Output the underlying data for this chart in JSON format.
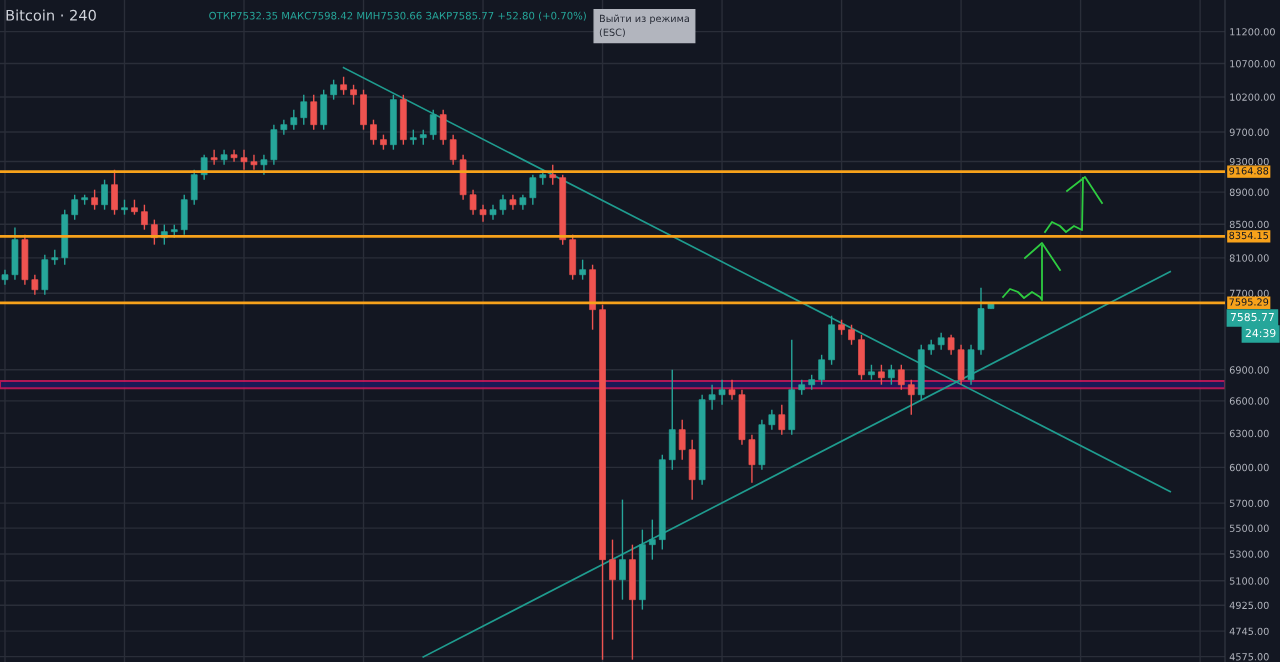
{
  "chart_data": {
    "type": "candlestick",
    "title": "Bitcoin · 240",
    "subtitle": "ОТКР7532.35 МАКС7598.42 МИН7530.66 ЗАКР7585.77 +52.80 (+0.70%)",
    "categories": [
      null,
      null,
      null,
      null,
      null,
      null,
      null,
      null,
      null,
      null,
      null,
      null,
      null,
      null,
      null,
      null,
      null,
      null,
      null,
      null,
      null,
      null,
      null,
      null,
      null,
      null,
      null,
      null,
      null,
      null,
      null,
      null,
      null,
      null,
      null,
      null,
      null,
      null,
      null,
      null,
      null,
      null,
      null,
      null,
      null,
      null,
      null,
      null,
      null,
      null,
      null,
      null,
      null,
      null,
      null,
      null,
      null,
      null,
      null,
      null,
      null,
      null,
      null,
      null,
      null,
      null,
      null,
      null,
      null,
      null,
      null,
      null,
      null,
      null,
      null,
      null,
      null,
      null,
      null,
      null,
      null,
      null,
      null,
      null,
      null,
      null,
      null,
      null,
      null,
      null,
      null,
      null,
      null,
      null,
      null,
      null,
      null,
      null,
      null,
      null,
      null,
      null,
      null,
      null,
      null,
      null,
      null,
      null,
      null,
      null,
      null,
      null,
      null,
      null,
      null,
      null,
      null,
      null,
      null,
      null,
      null,
      null,
      null
    ],
    "ohlc": [
      [
        7851,
        7964,
        7795,
        7907
      ],
      [
        7907,
        8459,
        7851,
        8314
      ],
      [
        8314,
        8374,
        7795,
        7851
      ],
      [
        7851,
        7907,
        7684,
        7739
      ],
      [
        7739,
        8137,
        7684,
        8079
      ],
      [
        8079,
        8196,
        8021,
        8102
      ],
      [
        8102,
        8679,
        8021,
        8617
      ],
      [
        8617,
        8867,
        8556,
        8804
      ],
      [
        8804,
        8867,
        8741,
        8829
      ],
      [
        8829,
        8931,
        8679,
        8741
      ],
      [
        8741,
        9060,
        8679,
        8995
      ],
      [
        8995,
        9190,
        8617,
        8679
      ],
      [
        8679,
        8804,
        8617,
        8703
      ],
      [
        8703,
        8804,
        8617,
        8654
      ],
      [
        8654,
        8741,
        8434,
        8495
      ],
      [
        8495,
        8556,
        8255,
        8338
      ],
      [
        8338,
        8495,
        8255,
        8410
      ],
      [
        8410,
        8495,
        8338,
        8434
      ],
      [
        8434,
        8867,
        8374,
        8804
      ],
      [
        8804,
        9190,
        8741,
        9125
      ],
      [
        9125,
        9390,
        9060,
        9350
      ],
      [
        9350,
        9458,
        9256,
        9323
      ],
      [
        9323,
        9458,
        9256,
        9390
      ],
      [
        9390,
        9458,
        9296,
        9350
      ],
      [
        9350,
        9458,
        9190,
        9296
      ],
      [
        9296,
        9390,
        9190,
        9256
      ],
      [
        9256,
        9390,
        9125,
        9323
      ],
      [
        9323,
        9803,
        9256,
        9733
      ],
      [
        9733,
        9873,
        9664,
        9803
      ],
      [
        9803,
        10016,
        9733,
        9902
      ],
      [
        9902,
        10232,
        9803,
        10130
      ],
      [
        10130,
        10232,
        9733,
        9803
      ],
      [
        9803,
        10306,
        9733,
        10232
      ],
      [
        10232,
        10455,
        10161,
        10380
      ],
      [
        10380,
        10500,
        10232,
        10306
      ],
      [
        10306,
        10380,
        10088,
        10232
      ],
      [
        10232,
        10306,
        9733,
        9803
      ],
      [
        9803,
        9873,
        9526,
        9595
      ],
      [
        9595,
        9664,
        9458,
        9526
      ],
      [
        9526,
        10232,
        9458,
        10161
      ],
      [
        10161,
        10232,
        9526,
        9595
      ],
      [
        9595,
        9733,
        9526,
        9622
      ],
      [
        9622,
        9733,
        9526,
        9664
      ],
      [
        9664,
        10016,
        9595,
        9945
      ],
      [
        9945,
        10016,
        9526,
        9595
      ],
      [
        9595,
        9664,
        9256,
        9323
      ],
      [
        9323,
        9390,
        8804,
        8867
      ],
      [
        8867,
        8931,
        8617,
        8679
      ],
      [
        8679,
        8741,
        8530,
        8617
      ],
      [
        8617,
        8741,
        8556,
        8679
      ],
      [
        8679,
        8867,
        8617,
        8804
      ],
      [
        8804,
        8867,
        8679,
        8741
      ],
      [
        8741,
        8867,
        8679,
        8829
      ],
      [
        8829,
        9125,
        8741,
        9086
      ],
      [
        9086,
        9190,
        8995,
        9125
      ],
      [
        9125,
        9256,
        8995,
        9086
      ],
      [
        9086,
        9125,
        8255,
        8314
      ],
      [
        8314,
        8374,
        7851,
        7907
      ],
      [
        7907,
        8079,
        7851,
        7964
      ],
      [
        7964,
        8021,
        7308,
        7521
      ],
      [
        7521,
        7575,
        4555,
        5257
      ],
      [
        5257,
        5410,
        4688,
        5108
      ],
      [
        5108,
        5729,
        4964,
        5257
      ],
      [
        5257,
        5371,
        4555,
        4964
      ],
      [
        4964,
        5488,
        4894,
        5371
      ],
      [
        5371,
        5567,
        5257,
        5410
      ],
      [
        5410,
        6110,
        5333,
        6066
      ],
      [
        6066,
        6900,
        5980,
        6333
      ],
      [
        6333,
        6424,
        6066,
        6154
      ],
      [
        6154,
        6243,
        5729,
        5895
      ],
      [
        5895,
        6658,
        5853,
        6611
      ],
      [
        6611,
        6754,
        6517,
        6658
      ],
      [
        6658,
        6803,
        6564,
        6706
      ],
      [
        6706,
        6803,
        6611,
        6658
      ],
      [
        6658,
        6706,
        6198,
        6243
      ],
      [
        6243,
        6288,
        5870,
        6023
      ],
      [
        6023,
        6424,
        5980,
        6378
      ],
      [
        6378,
        6517,
        6333,
        6470
      ],
      [
        6470,
        6564,
        6288,
        6333
      ],
      [
        6333,
        7204,
        6288,
        6706
      ],
      [
        6706,
        6803,
        6658,
        6754
      ],
      [
        6754,
        6851,
        6706,
        6803
      ],
      [
        6803,
        7050,
        6754,
        7000
      ],
      [
        7000,
        7456,
        6950,
        7360
      ],
      [
        7360,
        7413,
        7255,
        7308
      ],
      [
        7308,
        7360,
        7152,
        7204
      ],
      [
        7204,
        7255,
        6803,
        6851
      ],
      [
        6851,
        6950,
        6803,
        6880
      ],
      [
        6880,
        6950,
        6754,
        6822
      ],
      [
        6822,
        6950,
        6754,
        6900
      ],
      [
        6900,
        6950,
        6706,
        6754
      ],
      [
        6754,
        6803,
        6470,
        6658
      ],
      [
        6658,
        7152,
        6611,
        7101
      ],
      [
        7101,
        7204,
        7050,
        7152
      ],
      [
        7152,
        7276,
        7101,
        7224
      ],
      [
        7224,
        7255,
        7050,
        7101
      ],
      [
        7101,
        7152,
        6754,
        6803
      ],
      [
        6803,
        7152,
        6754,
        7101
      ],
      [
        7101,
        7762,
        7050,
        7533
      ],
      [
        7532.35,
        7598.42,
        7530.66,
        7585.77
      ],
      null,
      null,
      null,
      null,
      null,
      null,
      null,
      null,
      null,
      null,
      null,
      null,
      null,
      null,
      null,
      null,
      null,
      null,
      null,
      null,
      null,
      null,
      null
    ],
    "series": [
      {
        "type": "line",
        "color": "#1f9c8f",
        "values": [
          null,
          null,
          null,
          null,
          null,
          null,
          null,
          null,
          null,
          null,
          null,
          null,
          null,
          null,
          null,
          null,
          null,
          null,
          null,
          null,
          null,
          null,
          null,
          null,
          null,
          null,
          null,
          null,
          null,
          null,
          null,
          null,
          null,
          null,
          10636,
          null,
          null,
          null,
          null,
          null,
          null,
          null,
          null,
          null,
          null,
          null,
          null,
          null,
          null,
          null,
          null,
          null,
          null,
          null,
          null,
          null,
          null,
          null,
          null,
          null,
          null,
          null,
          null,
          null,
          null,
          null,
          null,
          null,
          null,
          null,
          null,
          null,
          null,
          null,
          null,
          null,
          null,
          null,
          null,
          null,
          null,
          null,
          null,
          null,
          null,
          null,
          null,
          null,
          null,
          null,
          null,
          null,
          null,
          null,
          null,
          null,
          null,
          null,
          null,
          null,
          null,
          null,
          null,
          null,
          null,
          null,
          null,
          null,
          null,
          null,
          null,
          null,
          null,
          null,
          null,
          null,
          null,
          5795,
          null,
          null,
          null,
          null,
          null
        ]
      },
      {
        "type": "line",
        "color": "#1f9c8f",
        "values": [
          null,
          null,
          null,
          null,
          null,
          null,
          null,
          null,
          null,
          null,
          null,
          null,
          null,
          null,
          null,
          null,
          null,
          null,
          null,
          null,
          null,
          null,
          null,
          null,
          null,
          null,
          null,
          null,
          null,
          null,
          null,
          null,
          null,
          null,
          null,
          null,
          null,
          null,
          null,
          null,
          null,
          null,
          4573,
          null,
          null,
          null,
          null,
          null,
          null,
          null,
          null,
          null,
          null,
          null,
          null,
          null,
          null,
          null,
          null,
          null,
          null,
          null,
          null,
          null,
          null,
          null,
          null,
          null,
          null,
          null,
          null,
          null,
          null,
          null,
          null,
          null,
          null,
          null,
          null,
          null,
          null,
          null,
          null,
          null,
          null,
          null,
          null,
          null,
          null,
          null,
          null,
          null,
          null,
          null,
          null,
          null,
          null,
          null,
          null,
          null,
          null,
          null,
          null,
          null,
          null,
          null,
          null,
          null,
          null,
          null,
          null,
          null,
          null,
          null,
          null,
          null,
          null,
          7941,
          null,
          null,
          null,
          null,
          null
        ]
      }
    ],
    "log": true,
    "ylim": [
      4540,
      11720
    ],
    "yticks": [
      {
        "value": 4575,
        "label": "4575.00"
      },
      {
        "value": 4745,
        "label": "4745.00"
      },
      {
        "value": 4925,
        "label": "4925.00"
      },
      {
        "value": 5100,
        "label": "5100.00"
      },
      {
        "value": 5300,
        "label": "5300.00"
      },
      {
        "value": 5500,
        "label": "5500.00"
      },
      {
        "value": 5700,
        "label": "5700.00"
      },
      {
        "value": 6000,
        "label": "6000.00"
      },
      {
        "value": 6300,
        "label": "6300.00"
      },
      {
        "value": 6600,
        "label": "6600.00"
      },
      {
        "value": 6900,
        "label": "6900.00"
      },
      {
        "value": 7700,
        "label": "7700.00"
      },
      {
        "value": 8100,
        "label": "8100.00"
      },
      {
        "value": 8500,
        "label": "8500.00"
      },
      {
        "value": 8900,
        "label": "8900.00"
      },
      {
        "value": 9300,
        "label": "9300.00"
      },
      {
        "value": 9700,
        "label": "9700.00"
      },
      {
        "value": 10200,
        "label": "10200.00"
      },
      {
        "value": 10700,
        "label": "10700.00"
      },
      {
        "value": 11200,
        "label": "11200.00"
      }
    ],
    "tick_labels": "y",
    "grid": true,
    "ref_lines": [
      {
        "axis": "y",
        "value": 9164.88,
        "label": "9164.88",
        "color": "#f7a21b"
      },
      {
        "axis": "y",
        "value": 8354.15,
        "label": "8354.15",
        "color": "#f7a21b"
      },
      {
        "axis": "y",
        "value": 7595.29,
        "label": "7595.29",
        "color": "#f7a21b"
      }
    ],
    "bands": [
      {
        "axis": "y",
        "from": 6720,
        "to": 6790,
        "color": "#c2185b"
      }
    ],
    "annotations": [
      "7585.77",
      "24:39",
      "Выйти из режима\n(ESC)"
    ]
  }
}
